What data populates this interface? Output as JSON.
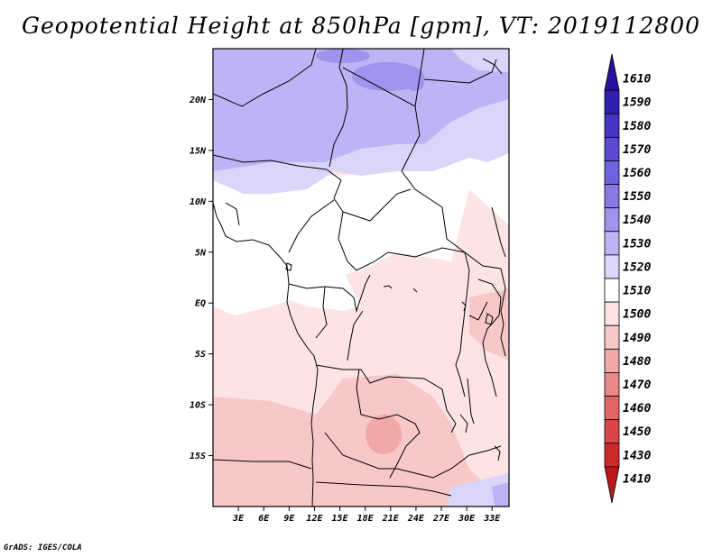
{
  "title": "Geopotential Height at 850hPa [gpm], VT: 2019112800",
  "footer": "GrADS: IGES/COLA",
  "x_ticks": [
    "3E",
    "6E",
    "9E",
    "12E",
    "15E",
    "18E",
    "21E",
    "24E",
    "27E",
    "30E",
    "33E"
  ],
  "y_ticks": [
    "20N",
    "15N",
    "10N",
    "5N",
    "EQ",
    "5S",
    "10S",
    "15S"
  ],
  "colorbar": {
    "levels": [
      "1610",
      "1590",
      "1580",
      "1570",
      "1560",
      "1550",
      "1540",
      "1530",
      "1520",
      "1510",
      "1500",
      "1490",
      "1480",
      "1470",
      "1460",
      "1450",
      "1430",
      "1410"
    ],
    "colors": [
      "#27129a",
      "#3020b0",
      "#4634c4",
      "#5a4ad2",
      "#6f62de",
      "#8679e6",
      "#9e94ee",
      "#bcb4f4",
      "#d9d6fa",
      "#ffffff",
      "#fde4e4",
      "#f8c8c8",
      "#f0a8a8",
      "#e88888",
      "#e06666",
      "#d84848",
      "#cc2a2a",
      "#b81818"
    ]
  },
  "chart_data": {
    "type": "heatmap",
    "title": "Geopotential Height at 850hPa [gpm], VT: 2019112800",
    "x_ticks": [
      "3E",
      "6E",
      "9E",
      "12E",
      "15E",
      "18E",
      "21E",
      "24E",
      "27E",
      "30E",
      "33E"
    ],
    "y_ticks": [
      "20N",
      "15N",
      "10N",
      "5N",
      "EQ",
      "5S",
      "10S",
      "15S"
    ],
    "xlim": [
      0,
      35
    ],
    "ylim": [
      -20,
      25
    ],
    "units": "gpm",
    "levels": [
      1410,
      1430,
      1450,
      1460,
      1470,
      1480,
      1490,
      1500,
      1510,
      1520,
      1530,
      1540,
      1550,
      1560,
      1570,
      1580,
      1590,
      1610
    ],
    "field_description_regions": [
      {
        "region": "northern (15N-25N)",
        "value_range": [
          1530,
          1550
        ]
      },
      {
        "region": "10N-15N",
        "value_range": [
          1520,
          1530
        ]
      },
      {
        "region": "equator to 10N",
        "value_range": [
          1510,
          1520
        ]
      },
      {
        "region": "southern (5S-20S)",
        "value_range": [
          1490,
          1510
        ]
      },
      {
        "region": "minimum near 20E 12S",
        "value_range": [
          1480,
          1490
        ]
      }
    ]
  }
}
